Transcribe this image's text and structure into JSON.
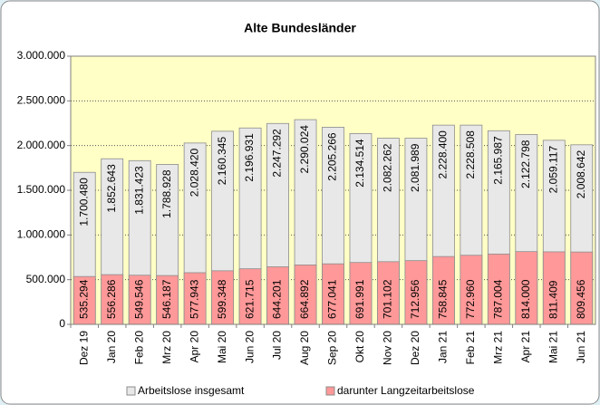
{
  "chart_data": {
    "type": "bar",
    "title": "Alte Bundesländer",
    "categories": [
      "Dez 19",
      "Jan 20",
      "Feb 20",
      "Mrz 20",
      "Apr 20",
      "Mai 20",
      "Jun 20",
      "Jul 20",
      "Aug 20",
      "Sep 20",
      "Okt 20",
      "Nov 20",
      "Dez 20",
      "Jan 21",
      "Feb 21",
      "Mrz 21",
      "Apr 21",
      "Mai 21",
      "Jun 21"
    ],
    "series": [
      {
        "name": "Arbeitslose insgesamt",
        "color": "#e8e8e8",
        "values": [
          1700480,
          1852643,
          1831423,
          1788928,
          2028420,
          2160345,
          2196931,
          2247292,
          2290024,
          2205266,
          2134514,
          2082262,
          2081989,
          2228400,
          2228508,
          2165987,
          2122798,
          2059117,
          2008642
        ],
        "value_labels": [
          "1.700.480",
          "1.852.643",
          "1.831.423",
          "1.788.928",
          "2.028.420",
          "2.160.345",
          "2.196.931",
          "2.247.292",
          "2.290.024",
          "2.205.266",
          "2.134.514",
          "2.082.262",
          "2.081.989",
          "2.228.400",
          "2.228.508",
          "2.165.987",
          "2.122.798",
          "2.059.117",
          "2.008.642"
        ]
      },
      {
        "name": "darunter Langzeitarbeitslose",
        "color": "#ff9999",
        "values": [
          535294,
          556286,
          549546,
          546187,
          577943,
          599348,
          621715,
          644201,
          664892,
          677041,
          691991,
          701102,
          712956,
          758845,
          772960,
          787004,
          814000,
          811409,
          809456
        ],
        "value_labels": [
          "535.294",
          "556.286",
          "549.546",
          "546.187",
          "577.943",
          "599.348",
          "621.715",
          "644.201",
          "664.892",
          "677.041",
          "691.991",
          "701.102",
          "712.956",
          "758.845",
          "772.960",
          "787.004",
          "814.000",
          "811.409",
          "809.456"
        ]
      }
    ],
    "ylim": [
      0,
      3000000
    ],
    "yticks": [
      0,
      {
        "value": 500000,
        "label": "500.000"
      },
      {
        "value": 1000000,
        "label": "1.000.000"
      },
      {
        "value": 1500000,
        "label": "1.500.000"
      },
      {
        "value": 2000000,
        "label": "2.000.000"
      },
      {
        "value": 2500000,
        "label": "2.500.000"
      },
      {
        "value": 3000000,
        "label": "3.000.000"
      }
    ],
    "grid": true,
    "legend": "bottom"
  }
}
